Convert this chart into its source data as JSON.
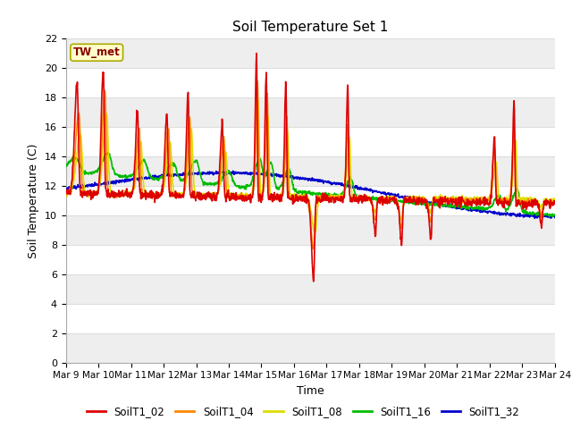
{
  "title": "Soil Temperature Set 1",
  "xlabel": "Time",
  "ylabel": "Soil Temperature (C)",
  "ylim": [
    0,
    22
  ],
  "yticks": [
    0,
    2,
    4,
    6,
    8,
    10,
    12,
    14,
    16,
    18,
    20,
    22
  ],
  "plot_bg_color": "#ffffff",
  "annotation_text": "TW_met",
  "annotation_color": "#880000",
  "annotation_bg": "#ffffcc",
  "annotation_edge": "#aaaa00",
  "series_colors": {
    "SoilT1_02": "#dd0000",
    "SoilT1_04": "#ff8800",
    "SoilT1_08": "#dddd00",
    "SoilT1_16": "#00bb00",
    "SoilT1_32": "#0000cc"
  },
  "xticklabels": [
    "Mar 9",
    "Mar 10",
    "Mar 11",
    "Mar 12",
    "Mar 13",
    "Mar 14",
    "Mar 15",
    "Mar 16",
    "Mar 17",
    "Mar 18",
    "Mar 19",
    "Mar 20",
    "Mar 21",
    "Mar 22",
    "Mar 23",
    "Mar 24"
  ],
  "grid_color": "#dddddd",
  "band_color": "#eeeeee"
}
